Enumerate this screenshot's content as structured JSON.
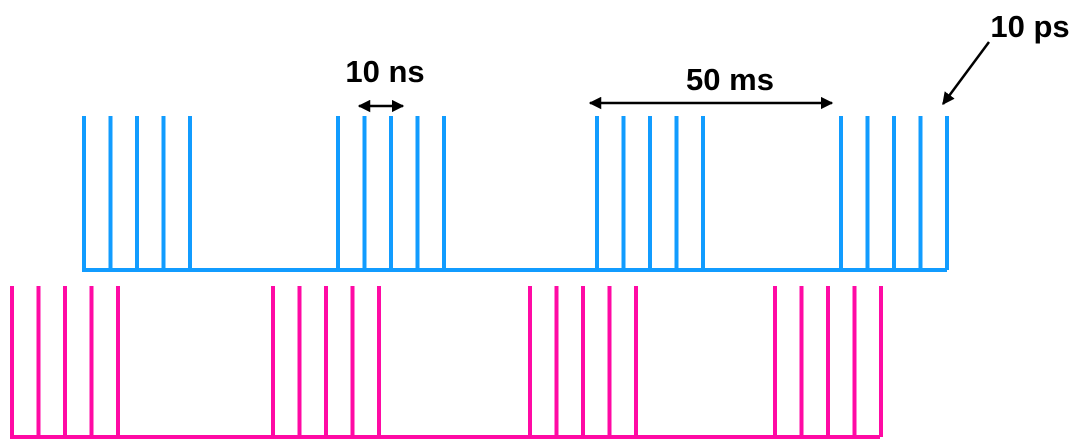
{
  "labels": {
    "pulse_spacing": "10 ns",
    "burst_spacing": "50 ms",
    "pulse_width": "10 ps"
  },
  "trains": [
    {
      "name": "blue",
      "color": "#119CFF",
      "bursts": 4,
      "pulses_per_burst": 5
    },
    {
      "name": "magenta",
      "color": "#FF0AA4",
      "bursts": 4,
      "pulses_per_burst": 5
    }
  ],
  "annotation_color": "#000000"
}
